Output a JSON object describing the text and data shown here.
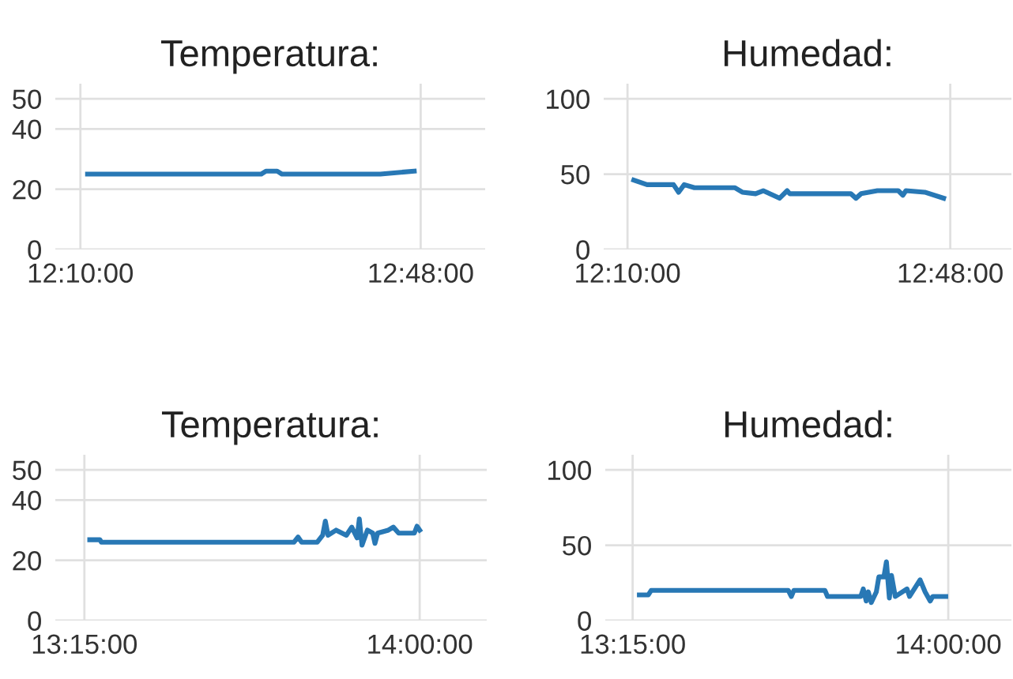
{
  "chart_data": [
    {
      "type": "line",
      "title": "Temperatura:",
      "x": [
        12.18,
        12.503,
        12.512,
        12.533,
        12.542,
        12.725,
        12.788
      ],
      "series": [
        {
          "color": "#2878b5",
          "values": [
            25,
            25,
            26,
            26,
            25,
            25,
            26
          ]
        }
      ],
      "xlim": [
        12.12,
        12.92
      ],
      "xticks": [
        {
          "value": 12.1667,
          "label": "12:10:00"
        },
        {
          "value": 12.8,
          "label": "12:48:00"
        }
      ],
      "ylim": [
        0,
        55
      ],
      "yticks": [
        0,
        20,
        40,
        50
      ],
      "grid": true,
      "marker": "none",
      "line_style": "solid"
    },
    {
      "type": "line",
      "title": "Humedad:",
      "x": [
        12.179,
        12.205,
        12.257,
        12.267,
        12.278,
        12.298,
        12.377,
        12.392,
        12.418,
        12.433,
        12.465,
        12.48,
        12.485,
        12.605,
        12.615,
        12.625,
        12.657,
        12.698,
        12.707,
        12.713,
        12.75,
        12.787
      ],
      "series": [
        {
          "color": "#2878b5",
          "values": [
            46,
            43,
            43,
            38,
            43,
            41,
            41,
            38,
            37,
            39,
            34,
            39,
            37,
            37,
            34,
            37,
            39,
            39,
            36,
            39,
            38,
            34
          ]
        }
      ],
      "xlim": [
        12.12,
        12.92
      ],
      "xticks": [
        {
          "value": 12.1667,
          "label": "12:10:00"
        },
        {
          "value": 12.8,
          "label": "12:48:00"
        }
      ],
      "ylim": [
        0,
        110
      ],
      "yticks": [
        0,
        50,
        100
      ],
      "grid": true,
      "marker": "none",
      "line_style": "solid"
    },
    {
      "type": "line",
      "title": "Temperatura:",
      "x": [
        13.262,
        13.285,
        13.288,
        13.719,
        13.728,
        13.736,
        13.771,
        13.783,
        13.789,
        13.795,
        13.813,
        13.836,
        13.848,
        13.86,
        13.865,
        13.871,
        13.883,
        13.895,
        13.9,
        13.906,
        13.93,
        13.941,
        13.953,
        13.988,
        13.994,
        14.0
      ],
      "series": [
        {
          "color": "#2878b5",
          "values": [
            26.8,
            26.8,
            26,
            26,
            27.7,
            26,
            26,
            28.3,
            33,
            28.3,
            30,
            28.3,
            31,
            27.4,
            33.7,
            25,
            30,
            29,
            25.6,
            29,
            30,
            31,
            29,
            29,
            31.3,
            30
          ]
        }
      ],
      "xlim": [
        13.185,
        14.15
      ],
      "xticks": [
        {
          "value": 13.25,
          "label": "13:15:00"
        },
        {
          "value": 14.0,
          "label": "14:00:00"
        }
      ],
      "ylim": [
        0,
        55
      ],
      "yticks": [
        0,
        20,
        40,
        50
      ],
      "grid": true,
      "marker": "none",
      "line_style": "solid"
    },
    {
      "type": "line",
      "title": "Humedad:",
      "x": [
        13.266,
        13.287,
        13.294,
        13.62,
        13.627,
        13.633,
        13.707,
        13.713,
        13.792,
        13.798,
        13.805,
        13.81,
        13.817,
        13.829,
        13.835,
        13.847,
        13.853,
        13.86,
        13.865,
        13.874,
        13.902,
        13.908,
        13.933,
        13.945,
        13.957,
        13.963,
        13.994
      ],
      "series": [
        {
          "color": "#2878b5",
          "values": [
            17,
            17,
            20,
            20,
            16,
            20,
            20,
            16,
            16,
            21,
            13,
            19,
            12,
            19,
            29,
            29,
            39,
            15,
            30,
            16,
            21,
            16,
            27,
            19,
            13,
            16,
            16
          ]
        }
      ],
      "xlim": [
        13.185,
        14.15
      ],
      "xticks": [
        {
          "value": 13.25,
          "label": "13:15:00"
        },
        {
          "value": 14.0,
          "label": "14:00:00"
        }
      ],
      "ylim": [
        0,
        110
      ],
      "yticks": [
        0,
        50,
        100
      ],
      "grid": true,
      "marker": "none",
      "line_style": "solid"
    }
  ]
}
